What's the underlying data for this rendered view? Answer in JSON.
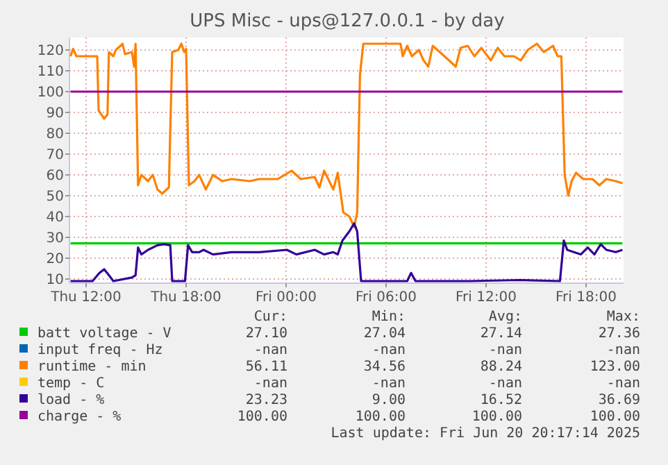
{
  "chart_data": {
    "type": "line",
    "title": "UPS Misc - ups@127.0.0.1 - by day",
    "xlim": [
      "2025-06-19T11:00",
      "2025-06-20T20:15"
    ],
    "xticks": [
      {
        "value": "2025-06-19T12:00",
        "label": "Thu 12:00"
      },
      {
        "value": "2025-06-19T18:00",
        "label": "Thu 18:00"
      },
      {
        "value": "2025-06-20T00:00",
        "label": "Fri 00:00"
      },
      {
        "value": "2025-06-20T06:00",
        "label": "Fri 06:00"
      },
      {
        "value": "2025-06-20T12:00",
        "label": "Fri 12:00"
      },
      {
        "value": "2025-06-20T18:00",
        "label": "Fri 18:00"
      }
    ],
    "ylim": [
      8,
      126
    ],
    "yticks": [
      10,
      20,
      30,
      40,
      50,
      60,
      70,
      80,
      90,
      100,
      110,
      120
    ],
    "grid": true,
    "legend": "bottom",
    "series": [
      {
        "name": "batt voltage - V",
        "color": "#00cc00",
        "x": [
          "2025-06-19T11:04",
          "2025-06-19T20:00",
          "2025-06-20T06:00",
          "2025-06-20T20:11"
        ],
        "values": [
          27.1,
          27.1,
          27.1,
          27.1
        ]
      },
      {
        "name": "input freq - Hz",
        "color": "#0066b3"
      },
      {
        "name": "runtime - min",
        "color": "#ff8000",
        "x": [
          "2025-06-19T11:04",
          "2025-06-19T11:13",
          "2025-06-19T11:25",
          "2025-06-19T12:40",
          "2025-06-19T12:45",
          "2025-06-19T13:05",
          "2025-06-19T13:17",
          "2025-06-19T13:22",
          "2025-06-19T13:38",
          "2025-06-19T13:47",
          "2025-06-19T14:04",
          "2025-06-19T14:11",
          "2025-06-19T14:20",
          "2025-06-19T14:45",
          "2025-06-19T14:53",
          "2025-06-19T14:58",
          "2025-06-19T15:07",
          "2025-06-19T15:19",
          "2025-06-19T15:43",
          "2025-06-19T16:00",
          "2025-06-19T16:17",
          "2025-06-19T16:34",
          "2025-06-19T16:58",
          "2025-06-19T17:10",
          "2025-06-19T17:32",
          "2025-06-19T17:43",
          "2025-06-19T17:53",
          "2025-06-19T18:00",
          "2025-06-19T18:10",
          "2025-06-19T18:30",
          "2025-06-19T18:47",
          "2025-06-19T19:11",
          "2025-06-19T19:37",
          "2025-06-19T20:10",
          "2025-06-19T20:43",
          "2025-06-19T21:50",
          "2025-06-19T22:23",
          "2025-06-19T23:30",
          "2025-06-20T00:20",
          "2025-06-20T00:53",
          "2025-06-20T01:43",
          "2025-06-20T02:00",
          "2025-06-20T02:17",
          "2025-06-20T02:50",
          "2025-06-20T03:06",
          "2025-06-20T03:26",
          "2025-06-20T03:48",
          "2025-06-20T04:05",
          "2025-06-20T04:16",
          "2025-06-20T04:26",
          "2025-06-20T04:38",
          "2025-06-20T06:52",
          "2025-06-20T07:00",
          "2025-06-20T07:16",
          "2025-06-20T07:33",
          "2025-06-20T07:58",
          "2025-06-20T08:15",
          "2025-06-20T08:32",
          "2025-06-20T08:48",
          "2025-06-20T09:05",
          "2025-06-20T09:30",
          "2025-06-20T10:11",
          "2025-06-20T10:28",
          "2025-06-20T10:54",
          "2025-06-20T11:18",
          "2025-06-20T11:43",
          "2025-06-20T12:17",
          "2025-06-20T12:42",
          "2025-06-20T13:06",
          "2025-06-20T13:40",
          "2025-06-20T14:05",
          "2025-06-20T14:30",
          "2025-06-20T15:03",
          "2025-06-20T15:28",
          "2025-06-20T16:01",
          "2025-06-20T16:18",
          "2025-06-20T16:31",
          "2025-06-20T16:43",
          "2025-06-20T16:56",
          "2025-06-20T17:08",
          "2025-06-20T17:24",
          "2025-06-20T17:50",
          "2025-06-20T18:23",
          "2025-06-20T18:48",
          "2025-06-20T19:13",
          "2025-06-20T19:47",
          "2025-06-20T20:11"
        ],
        "values": [
          117,
          120.5,
          117,
          117,
          91,
          87,
          89,
          119,
          117,
          120,
          122,
          123,
          118,
          119,
          112,
          123,
          55,
          60,
          57,
          60,
          53,
          51,
          54,
          119,
          120,
          123,
          119,
          120.5,
          55,
          57,
          60,
          53,
          60,
          57,
          58,
          57,
          58,
          58,
          62,
          58,
          59,
          54,
          62,
          53,
          61,
          42,
          40,
          35,
          42,
          108,
          123,
          123,
          117,
          122,
          117,
          120,
          115,
          112,
          122,
          120,
          117,
          112,
          121,
          122,
          117,
          121,
          115,
          121,
          117,
          117,
          115,
          120,
          123,
          119,
          122,
          117,
          117,
          60,
          50,
          57,
          61,
          58,
          58,
          55,
          58,
          57,
          56
        ]
      },
      {
        "name": "temp - C",
        "color": "#ffcc00"
      },
      {
        "name": "load - %",
        "color": "#330099",
        "x": [
          "2025-06-19T11:04",
          "2025-06-19T12:23",
          "2025-06-19T12:48",
          "2025-06-19T13:05",
          "2025-06-19T13:22",
          "2025-06-19T13:38",
          "2025-06-19T14:45",
          "2025-06-19T14:58",
          "2025-06-19T15:07",
          "2025-06-19T15:19",
          "2025-06-19T15:43",
          "2025-06-19T16:17",
          "2025-06-19T16:41",
          "2025-06-19T17:03",
          "2025-06-19T17:10",
          "2025-06-19T17:56",
          "2025-06-19T18:07",
          "2025-06-19T18:22",
          "2025-06-19T18:47",
          "2025-06-19T19:03",
          "2025-06-19T19:37",
          "2025-06-19T20:43",
          "2025-06-19T22:23",
          "2025-06-20T00:03",
          "2025-06-20T00:37",
          "2025-06-20T01:43",
          "2025-06-20T02:17",
          "2025-06-20T02:50",
          "2025-06-20T03:06",
          "2025-06-20T03:23",
          "2025-06-20T03:48",
          "2025-06-20T04:05",
          "2025-06-20T04:16",
          "2025-06-20T04:30",
          "2025-06-20T07:16",
          "2025-06-20T07:30",
          "2025-06-20T07:46",
          "2025-06-20T11:00",
          "2025-06-20T14:00",
          "2025-06-20T16:26",
          "2025-06-20T16:40",
          "2025-06-20T16:52",
          "2025-06-20T17:16",
          "2025-06-20T17:41",
          "2025-06-20T18:06",
          "2025-06-20T18:30",
          "2025-06-20T18:53",
          "2025-06-20T19:13",
          "2025-06-20T19:47",
          "2025-06-20T20:11"
        ],
        "values": [
          9,
          9,
          12.9,
          14.7,
          11.8,
          9,
          10.7,
          11.8,
          25.1,
          21.8,
          24,
          26.2,
          26.7,
          26.2,
          9,
          9,
          26.2,
          22.9,
          22.9,
          24,
          21.8,
          22.9,
          22.9,
          24,
          21.8,
          24,
          21.8,
          22.9,
          21.8,
          28.5,
          32.9,
          36.7,
          32.9,
          9,
          9,
          12.9,
          9,
          9,
          9.5,
          9,
          28.5,
          24,
          22.9,
          21.8,
          25.1,
          21.8,
          26.7,
          24,
          22.9,
          24
        ]
      },
      {
        "name": "charge - %",
        "color": "#990099",
        "x": [
          "2025-06-19T11:04",
          "2025-06-19T20:00",
          "2025-06-20T06:00",
          "2025-06-20T20:11"
        ],
        "values": [
          100,
          100,
          100,
          100
        ]
      }
    ],
    "annotations": [
      "Cur:",
      "Min:",
      "Avg:",
      "Max:",
      "27.10",
      "27.04",
      "27.14",
      "27.36",
      "-nan",
      "-nan",
      "-nan",
      "-nan",
      "56.11",
      "34.56",
      "88.24",
      "123.00",
      "-nan",
      "-nan",
      "-nan",
      "-nan",
      "23.23",
      "9.00",
      "16.52",
      "36.69",
      "100.00",
      "100.00",
      "100.00",
      "100.00",
      "Last update: Fri Jun 20 20:17:14 2025"
    ]
  }
}
